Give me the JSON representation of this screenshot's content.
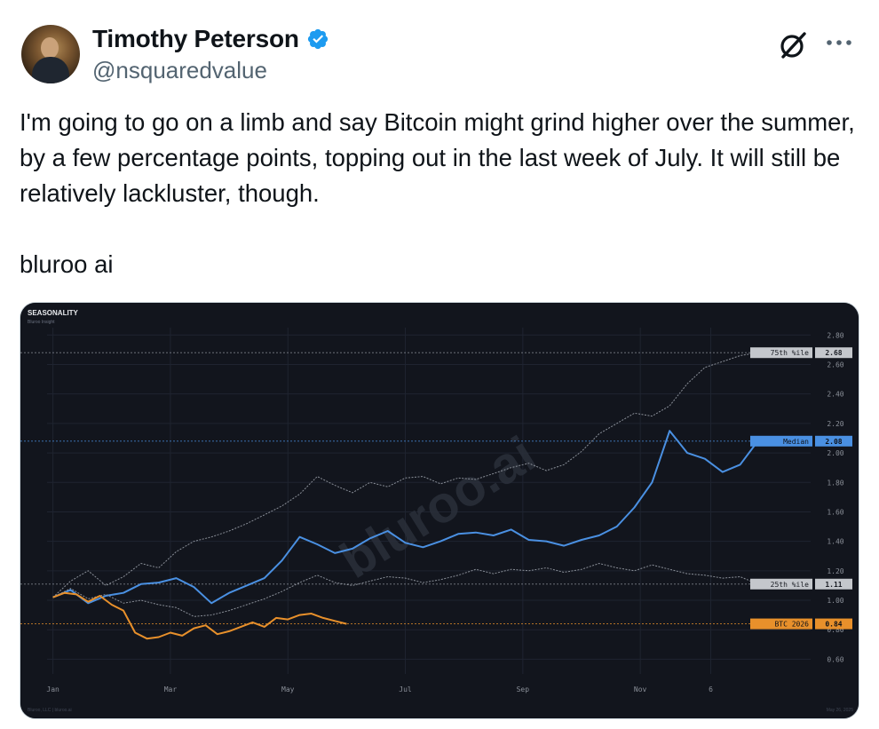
{
  "author": {
    "name": "Timothy Peterson",
    "handle": "@nsquaredvalue",
    "verified": true
  },
  "icons": {
    "verified": "verified-badge-icon",
    "grok": "grok-icon",
    "more": "more-options-icon"
  },
  "colors": {
    "verified": "#1d9bf0",
    "median_line": "#4a90e2",
    "btc_line": "#e8902b",
    "band_line": "#8a8f98",
    "chart_bg": "#12151d"
  },
  "tweet": {
    "lines": [
      "I'm going to go on a limb and say Bitcoin might grind higher over the summer, by a few percentage points, topping out in the last week of July. It will still be relatively lackluster, though."
    ],
    "signature": "bluroo ai"
  },
  "chart_data": {
    "type": "line",
    "title": "SEASONALITY",
    "subtitle": "Bluroo Insight",
    "watermark": "bluroo.ai",
    "footer_left": "Bluroo, LLC  |  bluroo.ai",
    "footer_right": "May 26, 2025",
    "x_tick_labels": [
      "Jan",
      "Mar",
      "May",
      "Jul",
      "Sep",
      "Nov",
      "6"
    ],
    "x_tick_pos": [
      0,
      2,
      4,
      6,
      8,
      10,
      11.2
    ],
    "xlim": [
      -0.1,
      12.9
    ],
    "y_tick_labels": [
      "2.80",
      "2.60",
      "2.40",
      "2.20",
      "2.00",
      "1.80",
      "1.60",
      "1.40",
      "1.20",
      "1.00",
      "0.80",
      "0.60"
    ],
    "y_ticks": [
      2.8,
      2.6,
      2.4,
      2.2,
      2.0,
      1.8,
      1.6,
      1.4,
      1.2,
      1.0,
      0.8,
      0.6
    ],
    "ylim": [
      0.5,
      2.85
    ],
    "grid": true,
    "series": [
      {
        "name": "75th %ile",
        "label": "75th %ile",
        "last_value": "2.68",
        "level": 2.68,
        "color": "#8a8f98",
        "dashed": true,
        "x": [
          0,
          0.3,
          0.6,
          0.9,
          1.2,
          1.5,
          1.8,
          2.1,
          2.4,
          2.7,
          3.0,
          3.3,
          3.6,
          3.9,
          4.2,
          4.5,
          4.8,
          5.1,
          5.4,
          5.7,
          6.0,
          6.3,
          6.6,
          6.9,
          7.2,
          7.5,
          7.8,
          8.1,
          8.4,
          8.7,
          9.0,
          9.3,
          9.6,
          9.9,
          10.2,
          10.5,
          10.8,
          11.1,
          11.4,
          11.7,
          12.0
        ],
        "y": [
          1.02,
          1.13,
          1.2,
          1.1,
          1.16,
          1.25,
          1.22,
          1.33,
          1.4,
          1.43,
          1.47,
          1.52,
          1.58,
          1.64,
          1.72,
          1.84,
          1.78,
          1.73,
          1.8,
          1.77,
          1.83,
          1.84,
          1.79,
          1.83,
          1.82,
          1.86,
          1.9,
          1.93,
          1.88,
          1.92,
          2.01,
          2.13,
          2.2,
          2.27,
          2.25,
          2.32,
          2.47,
          2.58,
          2.62,
          2.66,
          2.68
        ]
      },
      {
        "name": "Median",
        "label": "Median",
        "last_value": "2.08",
        "level": 2.08,
        "color": "#4a90e2",
        "dashed": false,
        "x": [
          0,
          0.3,
          0.6,
          0.9,
          1.2,
          1.5,
          1.8,
          2.1,
          2.4,
          2.7,
          3.0,
          3.3,
          3.6,
          3.9,
          4.2,
          4.5,
          4.8,
          5.1,
          5.4,
          5.7,
          6.0,
          6.3,
          6.6,
          6.9,
          7.2,
          7.5,
          7.8,
          8.1,
          8.4,
          8.7,
          9.0,
          9.3,
          9.6,
          9.9,
          10.2,
          10.5,
          10.8,
          11.1,
          11.4,
          11.7,
          12.0
        ],
        "y": [
          1.02,
          1.07,
          0.98,
          1.03,
          1.05,
          1.11,
          1.12,
          1.15,
          1.09,
          0.98,
          1.05,
          1.1,
          1.15,
          1.27,
          1.43,
          1.38,
          1.32,
          1.35,
          1.42,
          1.47,
          1.39,
          1.36,
          1.4,
          1.45,
          1.46,
          1.44,
          1.48,
          1.41,
          1.4,
          1.37,
          1.41,
          1.44,
          1.5,
          1.63,
          1.8,
          2.15,
          2.0,
          1.96,
          1.87,
          1.92,
          2.08
        ]
      },
      {
        "name": "25th %ile",
        "label": "25th %ile",
        "last_value": "1.11",
        "level": 1.11,
        "color": "#8a8f98",
        "dashed": true,
        "x": [
          0,
          0.3,
          0.6,
          0.9,
          1.2,
          1.5,
          1.8,
          2.1,
          2.4,
          2.7,
          3.0,
          3.3,
          3.6,
          3.9,
          4.2,
          4.5,
          4.8,
          5.1,
          5.4,
          5.7,
          6.0,
          6.3,
          6.6,
          6.9,
          7.2,
          7.5,
          7.8,
          8.1,
          8.4,
          8.7,
          9.0,
          9.3,
          9.6,
          9.9,
          10.2,
          10.5,
          10.8,
          11.1,
          11.4,
          11.7,
          12.0
        ],
        "y": [
          1.02,
          1.08,
          1.01,
          1.04,
          0.98,
          1.0,
          0.97,
          0.95,
          0.89,
          0.9,
          0.93,
          0.97,
          1.01,
          1.06,
          1.12,
          1.17,
          1.12,
          1.1,
          1.13,
          1.16,
          1.15,
          1.12,
          1.14,
          1.17,
          1.21,
          1.18,
          1.21,
          1.2,
          1.22,
          1.19,
          1.21,
          1.25,
          1.22,
          1.2,
          1.24,
          1.21,
          1.18,
          1.17,
          1.15,
          1.16,
          1.11
        ]
      },
      {
        "name": "BTC 2026",
        "label": "BTC 2026",
        "last_value": "0.84",
        "level": 0.84,
        "color": "#e8902b",
        "dashed": false,
        "x": [
          0,
          0.2,
          0.4,
          0.6,
          0.8,
          1.0,
          1.2,
          1.4,
          1.6,
          1.8,
          2.0,
          2.2,
          2.4,
          2.6,
          2.8,
          3.0,
          3.2,
          3.4,
          3.6,
          3.8,
          4.0,
          4.2,
          4.4,
          4.6,
          4.8,
          5.0
        ],
        "y": [
          1.02,
          1.05,
          1.04,
          0.99,
          1.03,
          0.97,
          0.93,
          0.78,
          0.74,
          0.75,
          0.78,
          0.76,
          0.81,
          0.83,
          0.77,
          0.79,
          0.82,
          0.85,
          0.82,
          0.88,
          0.87,
          0.9,
          0.91,
          0.88,
          0.86,
          0.84
        ]
      }
    ]
  }
}
